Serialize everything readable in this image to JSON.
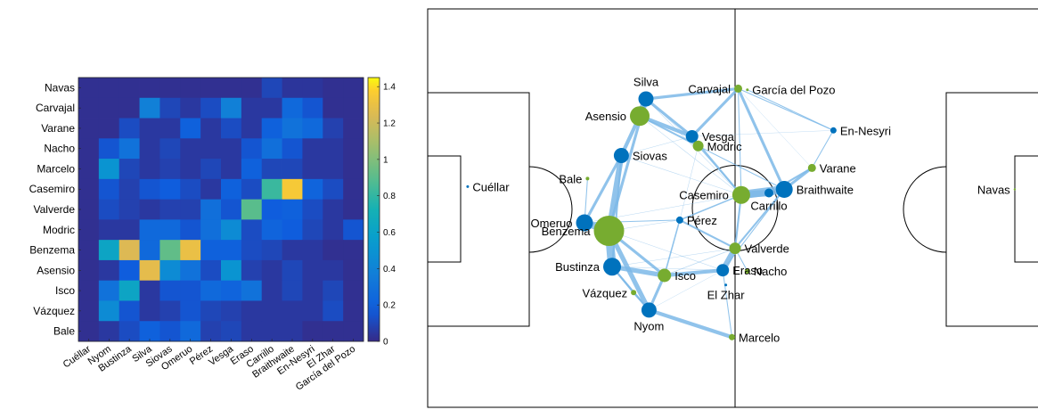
{
  "chart_data": [
    {
      "type": "heatmap",
      "title": "",
      "xlabel": "",
      "ylabel": "",
      "colormap": "parula",
      "rows": [
        "Navas",
        "Carvajal",
        "Varane",
        "Nacho",
        "Marcelo",
        "Casemiro",
        "Valverde",
        "Modric",
        "Benzema",
        "Asensio",
        "Isco",
        "Vázquez",
        "Bale"
      ],
      "columns": [
        "Cuéllar",
        "Nyom",
        "Bustinza",
        "Silva",
        "Siovas",
        "Omeruo",
        "Pérez",
        "Vesga",
        "Eraso",
        "Carrillo",
        "Braithwaite",
        "En-Nesyri",
        "El Zhar",
        "García del Pozo"
      ],
      "values": [
        [
          0.02,
          0.02,
          0.02,
          0.02,
          0.02,
          0.02,
          0.02,
          0.02,
          0.02,
          0.1,
          0.04,
          0.04,
          0.02,
          0.02
        ],
        [
          0.02,
          0.02,
          0.02,
          0.38,
          0.1,
          0.05,
          0.12,
          0.38,
          0.05,
          0.05,
          0.25,
          0.15,
          0.02,
          0.02
        ],
        [
          0.02,
          0.02,
          0.12,
          0.05,
          0.05,
          0.2,
          0.05,
          0.12,
          0.05,
          0.2,
          0.3,
          0.25,
          0.08,
          0.02
        ],
        [
          0.02,
          0.15,
          0.3,
          0.05,
          0.1,
          0.05,
          0.05,
          0.05,
          0.15,
          0.28,
          0.15,
          0.05,
          0.05,
          0.02
        ],
        [
          0.02,
          0.5,
          0.1,
          0.05,
          0.08,
          0.05,
          0.1,
          0.05,
          0.2,
          0.1,
          0.1,
          0.05,
          0.05,
          0.02
        ],
        [
          0.02,
          0.15,
          0.08,
          0.15,
          0.18,
          0.12,
          0.05,
          0.2,
          0.12,
          0.82,
          1.35,
          0.22,
          0.12,
          0.02
        ],
        [
          0.02,
          0.12,
          0.08,
          0.05,
          0.08,
          0.08,
          0.28,
          0.15,
          0.9,
          0.18,
          0.2,
          0.12,
          0.05,
          0.02
        ],
        [
          0.02,
          0.05,
          0.05,
          0.25,
          0.25,
          0.15,
          0.28,
          0.45,
          0.12,
          0.22,
          0.18,
          0.1,
          0.05,
          0.15
        ],
        [
          0.02,
          0.62,
          1.25,
          0.25,
          0.92,
          1.3,
          0.2,
          0.2,
          0.12,
          0.1,
          0.05,
          0.05,
          0.02,
          0.02
        ],
        [
          0.02,
          0.05,
          0.18,
          1.28,
          0.45,
          0.3,
          0.12,
          0.5,
          0.08,
          0.05,
          0.1,
          0.05,
          0.05,
          0.02
        ],
        [
          0.02,
          0.3,
          0.62,
          0.05,
          0.15,
          0.15,
          0.25,
          0.22,
          0.3,
          0.05,
          0.1,
          0.05,
          0.1,
          0.02
        ],
        [
          0.02,
          0.45,
          0.15,
          0.05,
          0.08,
          0.15,
          0.1,
          0.08,
          0.05,
          0.05,
          0.05,
          0.05,
          0.12,
          0.02
        ],
        [
          0.02,
          0.05,
          0.12,
          0.2,
          0.15,
          0.25,
          0.08,
          0.1,
          0.05,
          0.05,
          0.05,
          0.02,
          0.02,
          0.02
        ]
      ],
      "colorbar": {
        "range": [
          0,
          1.45
        ],
        "ticks": [
          0,
          0.2,
          0.4,
          0.6,
          0.8,
          1,
          1.2,
          1.4
        ]
      }
    },
    {
      "type": "scatter",
      "title": "",
      "xlabel": "",
      "ylabel": "",
      "xlim": [
        0,
        100
      ],
      "ylim": [
        0,
        100
      ],
      "team_colors": {
        "blue_team": "#0072bd",
        "green_team": "#77ac30"
      },
      "edge_color": "#7db8e8",
      "players": [
        {
          "name": "Cuéllar",
          "team": "blue",
          "x": 6.5,
          "y": 55.4,
          "size": 1.5,
          "label_side": "right"
        },
        {
          "name": "Silva",
          "team": "blue",
          "x": 35.5,
          "y": 77.4,
          "size": 8.5,
          "label_side": "above"
        },
        {
          "name": "Vesga",
          "team": "blue",
          "x": 43.0,
          "y": 68.0,
          "size": 7.0,
          "label_side": "right"
        },
        {
          "name": "Siovas",
          "team": "blue",
          "x": 31.5,
          "y": 63.2,
          "size": 8.5,
          "label_side": "right"
        },
        {
          "name": "Omeruo",
          "team": "blue",
          "x": 25.5,
          "y": 46.3,
          "size": 9.5,
          "label_side": "left"
        },
        {
          "name": "Pérez",
          "team": "blue",
          "x": 41.0,
          "y": 47.0,
          "size": 4.0,
          "label_side": "right"
        },
        {
          "name": "Bustinza",
          "team": "blue",
          "x": 30.0,
          "y": 35.3,
          "size": 10.0,
          "label_side": "left"
        },
        {
          "name": "Eraso",
          "team": "blue",
          "x": 48.0,
          "y": 34.4,
          "size": 7.0,
          "label_side": "right"
        },
        {
          "name": "El Zhar",
          "team": "blue",
          "x": 48.5,
          "y": 30.7,
          "size": 1.5,
          "label_side": "below"
        },
        {
          "name": "Nyom",
          "team": "blue",
          "x": 36.0,
          "y": 24.4,
          "size": 8.5,
          "label_side": "below"
        },
        {
          "name": "En-Nesyri",
          "team": "blue",
          "x": 66.0,
          "y": 69.5,
          "size": 3.5,
          "label_side": "right"
        },
        {
          "name": "Braithwaite",
          "team": "blue",
          "x": 58.0,
          "y": 54.7,
          "size": 9.5,
          "label_side": "right"
        },
        {
          "name": "Carrillo",
          "team": "blue",
          "x": 55.5,
          "y": 53.8,
          "size": 5.0,
          "label_side": "below"
        },
        {
          "name": "Carvajal",
          "team": "green",
          "x": 50.5,
          "y": 80.0,
          "size": 4.5,
          "label_side": "left"
        },
        {
          "name": "García del Pozo",
          "team": "green",
          "x": 52.0,
          "y": 79.7,
          "size": 1.5,
          "label_side": "right"
        },
        {
          "name": "Asensio",
          "team": "green",
          "x": 34.5,
          "y": 73.1,
          "size": 11.0,
          "label_side": "left"
        },
        {
          "name": "Modric",
          "team": "green",
          "x": 44.0,
          "y": 65.6,
          "size": 6.0,
          "label_side": "right"
        },
        {
          "name": "Bale",
          "team": "green",
          "x": 26.0,
          "y": 57.4,
          "size": 2.0,
          "label_side": "left"
        },
        {
          "name": "Varane",
          "team": "green",
          "x": 62.5,
          "y": 60.1,
          "size": 4.5,
          "label_side": "right"
        },
        {
          "name": "Casemiro",
          "team": "green",
          "x": 51.0,
          "y": 53.3,
          "size": 10.0,
          "label_side": "left"
        },
        {
          "name": "Benzema",
          "team": "green",
          "x": 29.5,
          "y": 44.3,
          "size": 17.0,
          "label_side": "left"
        },
        {
          "name": "Valverde",
          "team": "green",
          "x": 50.0,
          "y": 39.9,
          "size": 6.5,
          "label_side": "right"
        },
        {
          "name": "Nacho",
          "team": "green",
          "x": 52.0,
          "y": 34.2,
          "size": 3.0,
          "label_side": "right"
        },
        {
          "name": "Isco",
          "team": "green",
          "x": 38.5,
          "y": 33.1,
          "size": 7.5,
          "label_side": "right"
        },
        {
          "name": "Vázquez",
          "team": "green",
          "x": 33.5,
          "y": 28.8,
          "size": 3.0,
          "label_side": "left"
        },
        {
          "name": "Marcelo",
          "team": "green",
          "x": 49.5,
          "y": 17.6,
          "size": 3.5,
          "label_side": "right"
        },
        {
          "name": "Navas",
          "team": "green",
          "x": 95.5,
          "y": 54.7,
          "size": 1.2,
          "label_side": "left"
        }
      ],
      "edges": [
        {
          "from": "Benzema",
          "to": "Bustinza",
          "weight": 9
        },
        {
          "from": "Benzema",
          "to": "Omeruo",
          "weight": 7
        },
        {
          "from": "Benzema",
          "to": "Siovas",
          "weight": 6
        },
        {
          "from": "Benzema",
          "to": "Silva",
          "weight": 3
        },
        {
          "from": "Benzema",
          "to": "Nyom",
          "weight": 5
        },
        {
          "from": "Benzema",
          "to": "Isco",
          "weight": 3
        },
        {
          "from": "Asensio",
          "to": "Silva",
          "weight": 7
        },
        {
          "from": "Asensio",
          "to": "Siovas",
          "weight": 4
        },
        {
          "from": "Asensio",
          "to": "Vesga",
          "weight": 4
        },
        {
          "from": "Asensio",
          "to": "Modric",
          "weight": 2
        },
        {
          "from": "Silva",
          "to": "Carvajal",
          "weight": 3
        },
        {
          "from": "Silva",
          "to": "Vesga",
          "weight": 3
        },
        {
          "from": "Siovas",
          "to": "Omeruo",
          "weight": 3
        },
        {
          "from": "Siovas",
          "to": "Bustinza",
          "weight": 2
        },
        {
          "from": "Casemiro",
          "to": "Braithwaite",
          "weight": 9
        },
        {
          "from": "Casemiro",
          "to": "Carrillo",
          "weight": 7
        },
        {
          "from": "Casemiro",
          "to": "Vesga",
          "weight": 2
        },
        {
          "from": "Casemiro",
          "to": "Valverde",
          "weight": 2
        },
        {
          "from": "Casemiro",
          "to": "Pérez",
          "weight": 1.5
        },
        {
          "from": "Valverde",
          "to": "Eraso",
          "weight": 6
        },
        {
          "from": "Valverde",
          "to": "Pérez",
          "weight": 2
        },
        {
          "from": "Valverde",
          "to": "Braithwaite",
          "weight": 2
        },
        {
          "from": "Valverde",
          "to": "Nacho",
          "weight": 1
        },
        {
          "from": "Carvajal",
          "to": "Vesga",
          "weight": 3
        },
        {
          "from": "Carvajal",
          "to": "Braithwaite",
          "weight": 3
        },
        {
          "from": "Carvajal",
          "to": "En-Nesyri",
          "weight": 1
        },
        {
          "from": "Carvajal",
          "to": "Casemiro",
          "weight": 1
        },
        {
          "from": "Vesga",
          "to": "Modric",
          "weight": 3
        },
        {
          "from": "Varane",
          "to": "Braithwaite",
          "weight": 3
        },
        {
          "from": "Varane",
          "to": "Carrillo",
          "weight": 2
        },
        {
          "from": "Varane",
          "to": "En-Nesyri",
          "weight": 1
        },
        {
          "from": "Marcelo",
          "to": "Nyom",
          "weight": 4
        },
        {
          "from": "Marcelo",
          "to": "Eraso",
          "weight": 1
        },
        {
          "from": "Isco",
          "to": "Bustinza",
          "weight": 5
        },
        {
          "from": "Isco",
          "to": "Eraso",
          "weight": 4
        },
        {
          "from": "Isco",
          "to": "Nyom",
          "weight": 3
        },
        {
          "from": "Isco",
          "to": "Pérez",
          "weight": 1.5
        },
        {
          "from": "Vázquez",
          "to": "Nyom",
          "weight": 2
        },
        {
          "from": "Vázquez",
          "to": "Bustinza",
          "weight": 2
        },
        {
          "from": "Nyom",
          "to": "Bustinza",
          "weight": 2
        },
        {
          "from": "Modric",
          "to": "Braithwaite",
          "weight": 1
        },
        {
          "from": "Modric",
          "to": "Casemiro",
          "weight": 1
        },
        {
          "from": "Omeruo",
          "to": "Pérez",
          "weight": 1
        },
        {
          "from": "Bale",
          "to": "Omeruo",
          "weight": 1
        },
        {
          "from": "Eraso",
          "to": "Braithwaite",
          "weight": 1
        },
        {
          "from": "García del Pozo",
          "to": "En-Nesyri",
          "weight": 1
        },
        {
          "from": "Silva",
          "to": "Casemiro",
          "weight": 0.5
        },
        {
          "from": "Siovas",
          "to": "Casemiro",
          "weight": 0.5
        },
        {
          "from": "Bustinza",
          "to": "Valverde",
          "weight": 0.5
        },
        {
          "from": "Isco",
          "to": "Valverde",
          "weight": 0.7
        },
        {
          "from": "Benzema",
          "to": "Pérez",
          "weight": 0.5
        },
        {
          "from": "Benzema",
          "to": "Eraso",
          "weight": 0.5
        },
        {
          "from": "Omeruo",
          "to": "Casemiro",
          "weight": 0.5
        },
        {
          "from": "Silva",
          "to": "Modric",
          "weight": 0.5
        },
        {
          "from": "Asensio",
          "to": "Casemiro",
          "weight": 0.5
        },
        {
          "from": "Siovas",
          "to": "Vesga",
          "weight": 0.5
        },
        {
          "from": "Bustinza",
          "to": "Eraso",
          "weight": 0.5
        },
        {
          "from": "Modric",
          "to": "Pérez",
          "weight": 0.5
        },
        {
          "from": "Vesga",
          "to": "En-Nesyri",
          "weight": 0.4
        },
        {
          "from": "Eraso",
          "to": "Nyom",
          "weight": 0.4
        },
        {
          "from": "Carvajal",
          "to": "Varane",
          "weight": 0.4
        }
      ]
    }
  ]
}
